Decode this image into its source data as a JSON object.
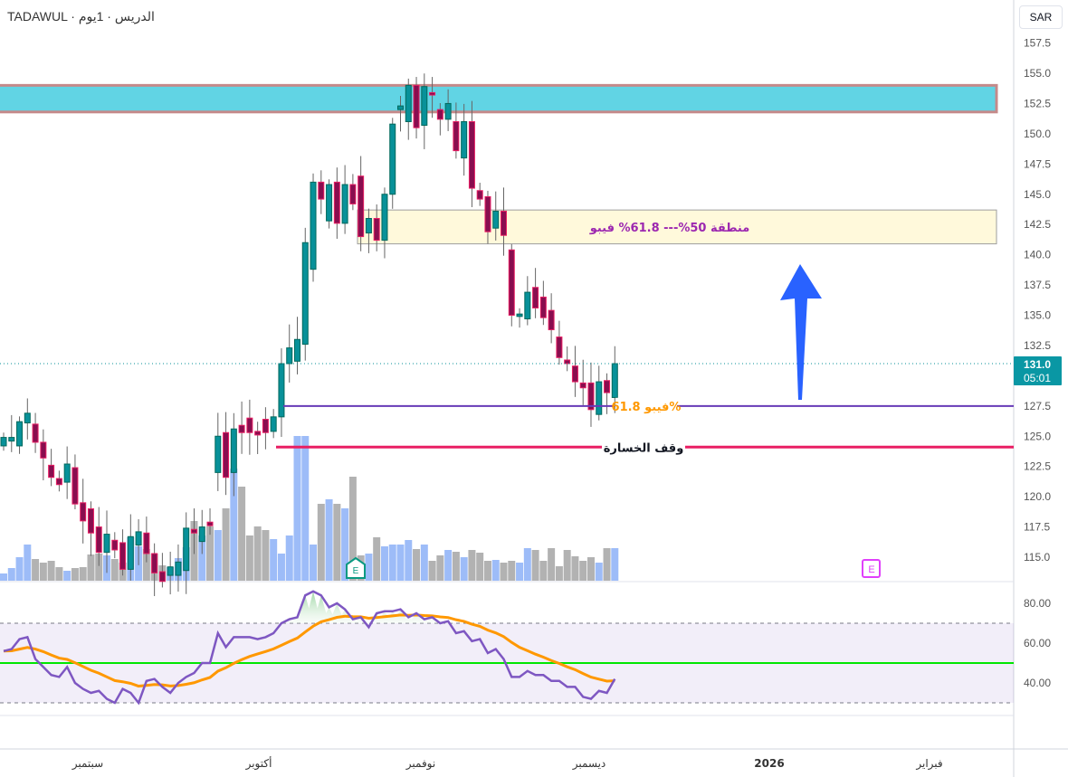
{
  "header": {
    "title": "TADAWUL · الدريس · 1يوم",
    "currency_button": "SAR"
  },
  "colors": {
    "up": "#089199",
    "up_border": "#00695c",
    "down": "#880e4f",
    "down_border": "#e91e63",
    "vol_up": "#9dbcf8",
    "vol_down": "#b2b2b2",
    "rsi": "#7e57c2",
    "rsi_ma": "#ff9800",
    "arrow": "#2962ff"
  },
  "price_axis": {
    "ticks": [
      "157.5",
      "155.0",
      "152.5",
      "150.0",
      "147.5",
      "145.0",
      "142.5",
      "140.0",
      "137.5",
      "135.0",
      "132.5",
      "127.5",
      "125.0",
      "122.5",
      "120.0",
      "117.5",
      "115.0"
    ],
    "tick_values": [
      157.5,
      155,
      152.5,
      150,
      147.5,
      145,
      142.5,
      140,
      137.5,
      135,
      132.5,
      127.5,
      125,
      122.5,
      120,
      117.5,
      115
    ]
  },
  "last_price": {
    "value": "131.0",
    "countdown": "05:01",
    "price": 131.0
  },
  "rsi_axis": {
    "ticks": [
      "80.00",
      "60.00",
      "40.00"
    ],
    "tick_values": [
      80,
      60,
      40
    ],
    "upper": 70,
    "middle": 50,
    "lower": 30
  },
  "time_axis": [
    {
      "label": "سبتمبر",
      "bold": false
    },
    {
      "label": "أكتوبر",
      "bold": false
    },
    {
      "label": "نوفمبر",
      "bold": false
    },
    {
      "label": "ديسمبر",
      "bold": false
    },
    {
      "label": "2026",
      "bold": true
    },
    {
      "label": "فبراير",
      "bold": false
    }
  ],
  "annotations": {
    "resistance_zone": {
      "top": 154.0,
      "bottom": 151.8
    },
    "fib_zone": {
      "top": 143.7,
      "bottom": 140.9,
      "label": "منطقة 50%--- 61.8% فيبو"
    },
    "fib_line": {
      "price": 127.5,
      "label": "فيبو 61.8%"
    },
    "stop_loss": {
      "price": 124.1,
      "label": "وقف الخسارة"
    }
  },
  "events": [
    {
      "type": "earnings",
      "label": "E"
    },
    {
      "type": "earnings-upcoming",
      "label": "E"
    }
  ],
  "candles": [
    [
      124.2,
      124.9
    ],
    [
      124.6,
      124.9
    ],
    [
      124.2,
      126.2
    ],
    [
      126.1,
      126.9
    ],
    [
      126.0,
      124.5
    ],
    [
      124.5,
      123.2
    ],
    [
      122.6,
      121.6
    ],
    [
      121.5,
      121.0
    ],
    [
      121.2,
      122.7
    ],
    [
      122.4,
      119.4
    ],
    [
      119.5,
      118.0
    ],
    [
      119.0,
      117.0
    ],
    [
      117.5,
      115.4
    ],
    [
      115.4,
      116.9
    ],
    [
      116.4,
      115.6
    ],
    [
      116.2,
      114.0
    ],
    [
      114.0,
      116.7
    ],
    [
      116.0,
      117.1
    ],
    [
      117.0,
      115.3
    ],
    [
      115.3,
      113.7
    ],
    [
      113.8,
      113.0
    ],
    [
      113.5,
      114.2
    ],
    [
      113.5,
      114.6
    ],
    [
      113.9,
      117.4
    ],
    [
      117.3,
      117.0
    ],
    [
      116.3,
      117.5
    ],
    [
      117.9,
      117.6
    ],
    [
      122.0,
      125.0
    ],
    [
      125.3,
      121.6
    ],
    [
      122.0,
      125.6
    ],
    [
      125.9,
      125.3
    ],
    [
      126.5,
      125.3
    ],
    [
      125.4,
      125.1
    ],
    [
      126.4,
      125.3
    ],
    [
      125.4,
      126.6
    ],
    [
      126.6,
      131.0
    ],
    [
      131.0,
      132.3
    ],
    [
      131.2,
      133.0
    ],
    [
      132.6,
      141.0
    ],
    [
      138.8,
      146.0
    ],
    [
      146.0,
      144.6
    ],
    [
      142.8,
      145.8
    ],
    [
      146.0,
      142.6
    ],
    [
      142.6,
      145.8
    ],
    [
      145.8,
      144.2
    ],
    [
      146.5,
      141.5
    ],
    [
      141.8,
      143.0
    ],
    [
      143.0,
      141.2
    ],
    [
      141.2,
      145.0
    ],
    [
      145.0,
      150.8
    ],
    [
      152.0,
      152.3
    ],
    [
      151.0,
      154.0
    ],
    [
      154.0,
      150.5
    ],
    [
      150.7,
      153.9
    ],
    [
      153.4,
      153.2
    ],
    [
      152.0,
      151.2
    ],
    [
      151.2,
      152.5
    ],
    [
      151.0,
      148.6
    ],
    [
      148.0,
      151.0
    ],
    [
      151.0,
      145.5
    ],
    [
      145.3,
      144.6
    ],
    [
      144.8,
      141.9
    ],
    [
      142.2,
      143.6
    ],
    [
      143.6,
      141.6
    ],
    [
      140.4,
      135.0
    ],
    [
      134.9,
      135.1
    ],
    [
      134.7,
      136.9
    ],
    [
      137.3,
      135.6
    ],
    [
      136.5,
      134.8
    ],
    [
      135.4,
      133.8
    ],
    [
      133.2,
      131.5
    ],
    [
      131.3,
      131.0
    ],
    [
      130.8,
      129.5
    ],
    [
      129.4,
      129.0
    ],
    [
      129.4,
      127.2
    ],
    [
      126.8,
      129.5
    ],
    [
      129.6,
      128.6
    ],
    [
      128.2,
      131.0
    ]
  ],
  "volume": [
    8,
    14,
    26,
    40,
    24,
    20,
    22,
    15,
    11,
    14,
    15,
    29,
    30,
    28,
    24,
    20,
    48,
    38,
    35,
    30,
    17,
    15,
    25,
    37,
    66,
    50,
    60,
    56,
    80,
    124,
    104,
    50,
    60,
    56,
    46,
    30,
    50,
    160,
    160,
    40,
    85,
    90,
    85,
    80,
    115,
    28,
    30,
    48,
    38,
    40,
    40,
    45,
    35,
    40,
    22,
    28,
    34,
    32,
    26,
    34,
    31,
    22,
    23,
    20,
    22,
    20,
    36,
    34,
    22,
    36,
    16,
    34,
    27,
    22,
    26,
    20,
    36,
    36
  ],
  "rsi": [
    56,
    57,
    62,
    63,
    52,
    48,
    44,
    43,
    48,
    40,
    37,
    35,
    36,
    32,
    30,
    37,
    35,
    30,
    41,
    42,
    38,
    35,
    40,
    43,
    45,
    50,
    50,
    65,
    58,
    63,
    63,
    63,
    62,
    63,
    65,
    70,
    72,
    73,
    84,
    86,
    84,
    78,
    80,
    77,
    72,
    73,
    68,
    75,
    76,
    76,
    77,
    73,
    75,
    72,
    73,
    70,
    71,
    65,
    66,
    61,
    62,
    55,
    57,
    52,
    43,
    43,
    46,
    44,
    44,
    41,
    41,
    38,
    38,
    33,
    32,
    36,
    35,
    42
  ]
}
